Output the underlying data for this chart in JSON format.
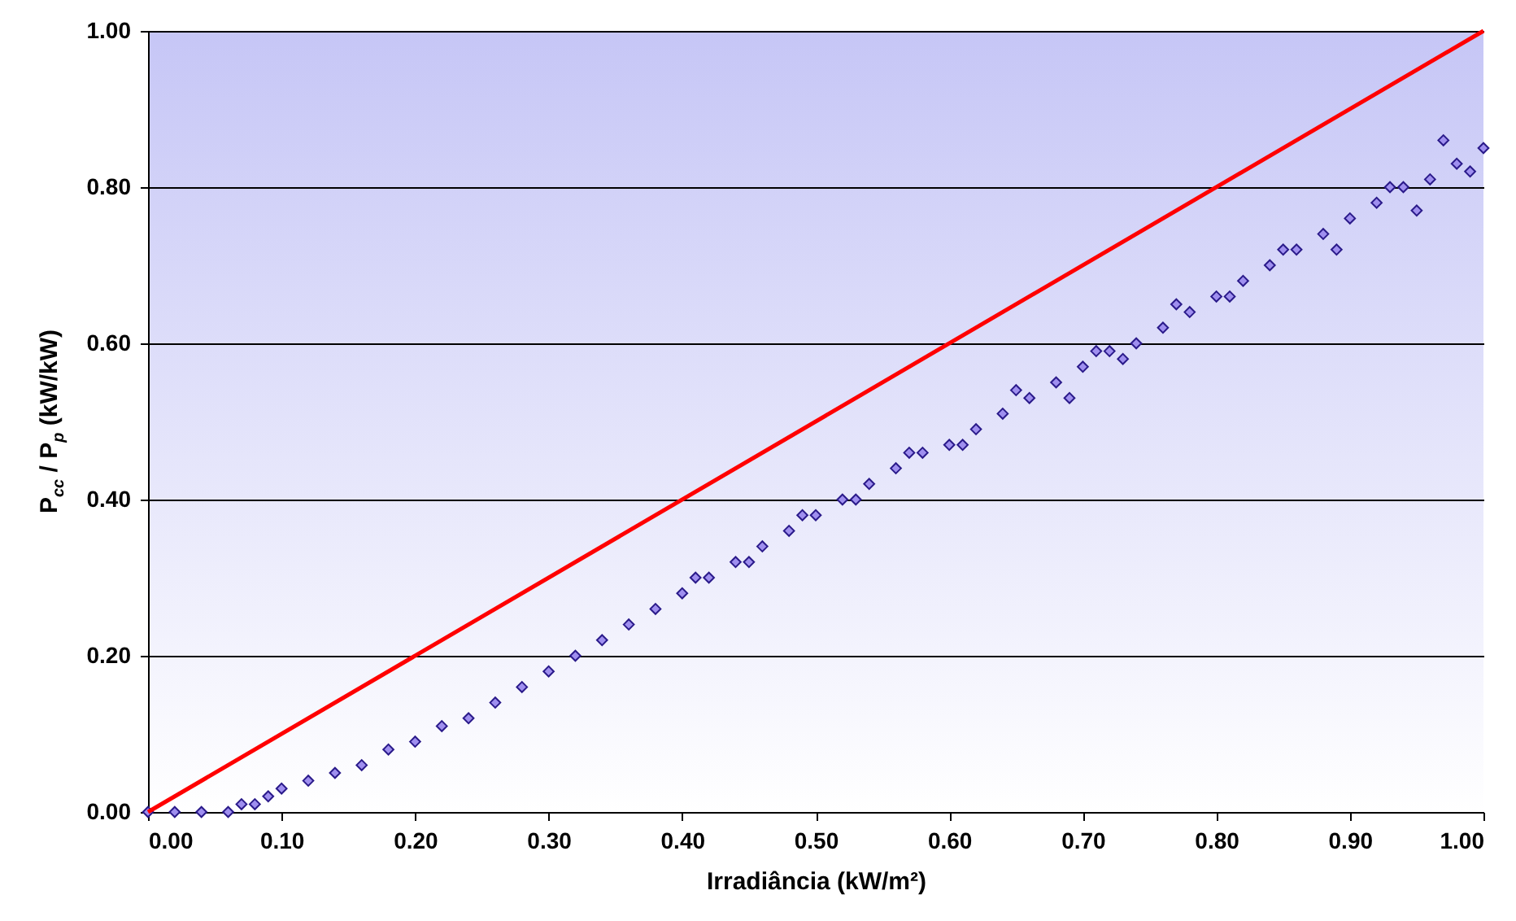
{
  "chart_data": {
    "type": "scatter",
    "xlabel": "Irradiância (kW/m²)",
    "ylabel": "P$_{cc}$ / P$_{p}$  (kW/kW)",
    "xlim": [
      0,
      1
    ],
    "ylim": [
      0,
      1
    ],
    "xticks": [
      {
        "value": 0,
        "label": "0.00"
      },
      {
        "value": 0.1,
        "label": "0.10"
      },
      {
        "value": 0.2,
        "label": "0.20"
      },
      {
        "value": 0.3,
        "label": "0.30"
      },
      {
        "value": 0.4,
        "label": "0.40"
      },
      {
        "value": 0.5,
        "label": "0.50"
      },
      {
        "value": 0.6,
        "label": "0.60"
      },
      {
        "value": 0.7,
        "label": "0.70"
      },
      {
        "value": 0.8,
        "label": "0.80"
      },
      {
        "value": 0.9,
        "label": "0.90"
      },
      {
        "value": 1,
        "label": "1.00"
      }
    ],
    "yticks": [
      {
        "value": 0,
        "label": "0.00"
      },
      {
        "value": 0.2,
        "label": "0.20"
      },
      {
        "value": 0.4,
        "label": "0.40"
      },
      {
        "value": 0.6,
        "label": "0.60"
      },
      {
        "value": 0.8,
        "label": "0.80"
      },
      {
        "value": 1,
        "label": "1.00"
      }
    ],
    "grid": "y",
    "series": [
      {
        "type": "scatter",
        "marker": "diamond",
        "color": "#9f8fef",
        "x": [
          0,
          0.02,
          0.04,
          0.06,
          0.07,
          0.08,
          0.09,
          0.1,
          0.12,
          0.14,
          0.16,
          0.18,
          0.2,
          0.22,
          0.24,
          0.26,
          0.28,
          0.3,
          0.32,
          0.34,
          0.36,
          0.38,
          0.4,
          0.42,
          0.44,
          0.46,
          0.48,
          0.5,
          0.52,
          0.54,
          0.56,
          0.58,
          0.6,
          0.62,
          0.64,
          0.66,
          0.68,
          0.7,
          0.72,
          0.74,
          0.76,
          0.78,
          0.8,
          0.82,
          0.84,
          0.86,
          0.88,
          0.9,
          0.92,
          0.94,
          0.96,
          0.98,
          1,
          0.41,
          0.45,
          0.49,
          0.53,
          0.57,
          0.61,
          0.65,
          0.69,
          0.71,
          0.73,
          0.77,
          0.81,
          0.85,
          0.89,
          0.93,
          0.95,
          0.97,
          0.99
        ],
        "values": [
          0,
          0,
          0,
          0,
          0.01,
          0.01,
          0.02,
          0.03,
          0.04,
          0.05,
          0.06,
          0.08,
          0.09,
          0.11,
          0.12,
          0.14,
          0.16,
          0.18,
          0.2,
          0.22,
          0.24,
          0.26,
          0.28,
          0.3,
          0.32,
          0.34,
          0.36,
          0.38,
          0.4,
          0.42,
          0.44,
          0.46,
          0.47,
          0.49,
          0.51,
          0.53,
          0.55,
          0.57,
          0.59,
          0.6,
          0.62,
          0.64,
          0.66,
          0.68,
          0.7,
          0.72,
          0.74,
          0.76,
          0.78,
          0.8,
          0.81,
          0.83,
          0.85,
          0.3,
          0.32,
          0.38,
          0.4,
          0.46,
          0.47,
          0.54,
          0.53,
          0.59,
          0.58,
          0.65,
          0.66,
          0.72,
          0.72,
          0.8,
          0.77,
          0.86,
          0.82
        ]
      },
      {
        "type": "line",
        "color": "#ff0000",
        "line_style": "solid",
        "x": [
          0,
          1
        ],
        "values": [
          0,
          1
        ]
      }
    ]
  }
}
